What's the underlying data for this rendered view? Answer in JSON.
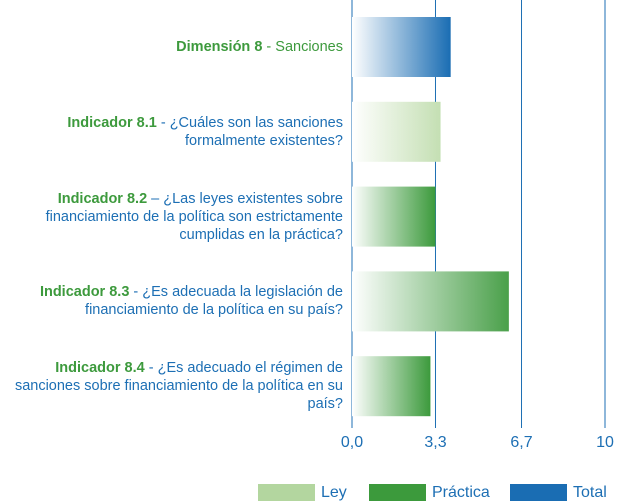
{
  "chart_data": {
    "type": "bar",
    "orientation": "horizontal",
    "categories": [
      {
        "label": "Dimensión 8",
        "text": "- Sanciones"
      },
      {
        "label": "Indicador 8.1",
        "text": "- ¿Cuáles son las sanciones formalmente existentes?"
      },
      {
        "label": "Indicador 8.2",
        "text": "– ¿Las leyes existentes sobre financiamiento de la política son estrictamente cumplidas en la práctica?"
      },
      {
        "label": "Indicador 8.3",
        "text": "- ¿Es adecuada la legislación de financiamiento de la política en su país?"
      },
      {
        "label": "Indicador 8.4",
        "text": "- ¿Es adecuado el régimen de sanciones sobre financiamiento de la política en su país?"
      }
    ],
    "values": [
      3.9,
      3.5,
      3.3,
      6.2,
      3.1
    ],
    "colors": [
      "#1a6db3",
      "#c4dfb3",
      "#3c9a3c",
      "#4aa04a",
      "#3c9a3c"
    ],
    "xlim": [
      0,
      10
    ],
    "xticks": [
      {
        "value": 0,
        "label": "0,0"
      },
      {
        "value": 3.3,
        "label": "3,3"
      },
      {
        "value": 6.7,
        "label": "6,7"
      },
      10
    ],
    "grid": true,
    "legend": [
      {
        "name": "Ley",
        "color": "#b3d69f"
      },
      {
        "name": "Práctica",
        "color": "#3c9a3c"
      },
      {
        "name": "Total",
        "color": "#1a6db3"
      }
    ]
  }
}
